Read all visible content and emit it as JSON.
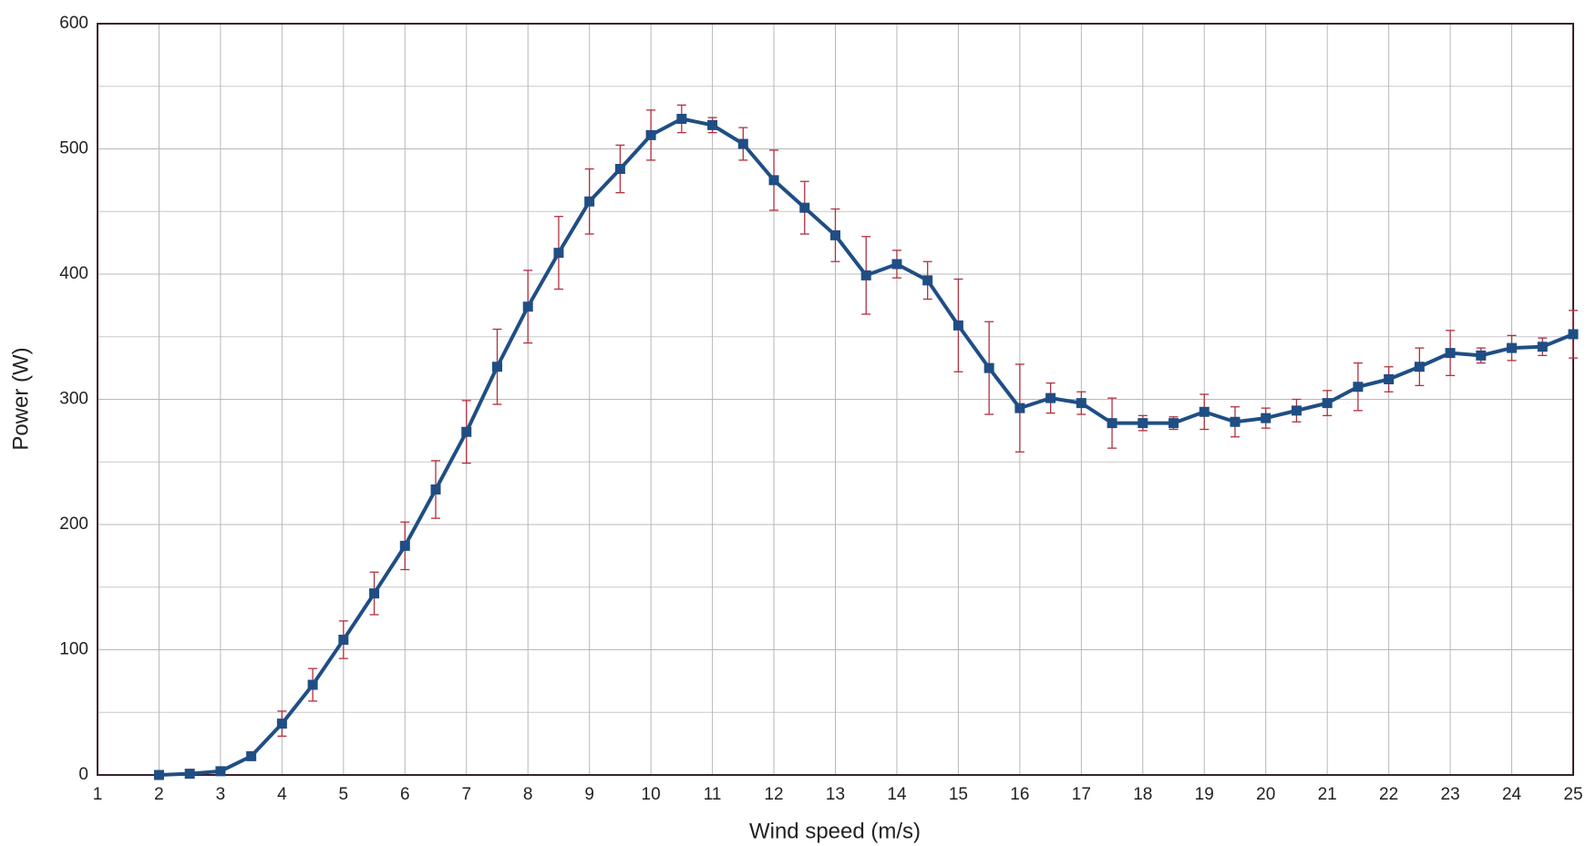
{
  "chart_data": {
    "type": "line",
    "xlabel": "Wind speed (m/s)",
    "ylabel": "Power (W)",
    "x": [
      2,
      2.5,
      3,
      3.5,
      4,
      4.5,
      5,
      5.5,
      6,
      6.5,
      7,
      7.5,
      8,
      8.5,
      9,
      9.5,
      10,
      10.5,
      11,
      11.5,
      12,
      12.5,
      13,
      13.5,
      14,
      14.5,
      15,
      15.5,
      16,
      16.5,
      17,
      17.5,
      18,
      18.5,
      19,
      19.5,
      20,
      20.5,
      21,
      21.5,
      22,
      22.5,
      23,
      23.5,
      24,
      24.5,
      25
    ],
    "values": [
      0,
      1,
      3,
      15,
      41,
      72,
      108,
      145,
      183,
      228,
      274,
      326,
      374,
      417,
      458,
      484,
      511,
      524,
      519,
      504,
      475,
      453,
      431,
      399,
      408,
      395,
      359,
      325,
      293,
      301,
      297,
      281,
      281,
      281,
      290,
      282,
      285,
      291,
      297,
      310,
      316,
      326,
      337,
      335,
      341,
      342,
      352
    ],
    "errors": [
      0,
      0,
      1,
      3,
      10,
      13,
      15,
      17,
      19,
      23,
      25,
      30,
      29,
      29,
      26,
      19,
      20,
      11,
      6,
      13,
      24,
      21,
      21,
      31,
      11,
      15,
      37,
      37,
      35,
      12,
      9,
      20,
      6,
      5,
      14,
      12,
      8,
      9,
      10,
      19,
      10,
      15,
      18,
      6,
      10,
      7,
      19
    ],
    "color": "#1f4e85",
    "error_color": "#b03040",
    "xlim": [
      1,
      25
    ],
    "xticks": [
      1,
      2,
      3,
      4,
      5,
      6,
      7,
      8,
      9,
      10,
      11,
      12,
      13,
      14,
      15,
      16,
      17,
      18,
      19,
      20,
      21,
      22,
      23,
      24,
      25
    ],
    "ylim": [
      0,
      600
    ],
    "yticks": [
      0,
      100,
      200,
      300,
      400,
      500,
      600
    ],
    "yminor_ticks": [
      50,
      150,
      250,
      350,
      450,
      550
    ],
    "grid": true
  }
}
